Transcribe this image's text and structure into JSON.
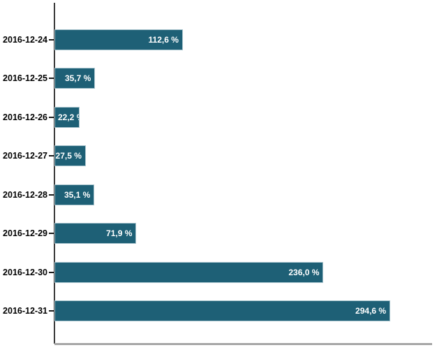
{
  "chart_data": {
    "type": "bar",
    "orientation": "horizontal",
    "title": "",
    "xlabel": "",
    "ylabel": "",
    "categories": [
      "2016-12-24",
      "2016-12-25",
      "2016-12-26",
      "2016-12-27",
      "2016-12-28",
      "2016-12-29",
      "2016-12-30",
      "2016-12-31"
    ],
    "values": [
      112.6,
      35.7,
      22.2,
      27.5,
      35.1,
      71.9,
      236.0,
      294.6
    ],
    "value_labels": [
      "112,6 %",
      "35,7 %",
      "22,2 %",
      "27,5 %",
      "35,1 %",
      "71,9 %",
      "236,0 %",
      "294,6 %"
    ],
    "unit": "%",
    "xlim": [
      0,
      335.6
    ],
    "grid": false,
    "legend": false,
    "bar_color": "#1e6076",
    "bar_border_color": "#a9c5ce",
    "value_label_color": "#ffffff",
    "category_label_color": "#000000",
    "axis_color": "#3c3c3c",
    "baseline_color": "#a6a6a6"
  }
}
